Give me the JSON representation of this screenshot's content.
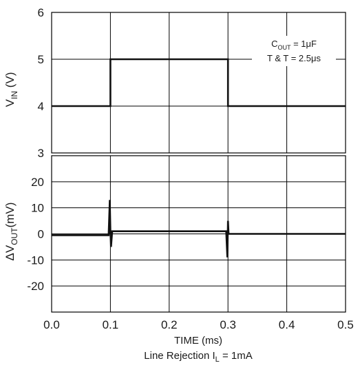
{
  "chart_data": {
    "type": "line",
    "caption": "Line Rejection",
    "caption_sub": "I",
    "caption_sub_index": "L",
    "caption_sub_tail": " = 1mA",
    "xlabel": "TIME (ms)",
    "xlim": [
      0,
      0.5
    ],
    "x_ticks": [
      0.0,
      0.1,
      0.2,
      0.3,
      0.4,
      0.5
    ],
    "x_tick_labels": [
      "0.0",
      "0.1",
      "0.2",
      "0.3",
      "0.4",
      "0.5"
    ],
    "grid": true,
    "panels": [
      {
        "id": "vin",
        "ylabel_main": "V",
        "ylabel_sub": "IN",
        "ylabel_tail": " (V)",
        "ylim": [
          3,
          6
        ],
        "y_ticks": [
          3,
          4,
          5,
          6
        ],
        "y_tick_labels": [
          "3",
          "4",
          "5",
          "6"
        ],
        "annotation": {
          "line1_main": "C",
          "line1_sub": "OUT",
          "line1_tail": " = 1μF",
          "line2": "T & T = 2.5μs"
        },
        "series": [
          {
            "x": [
              0.0,
              0.1,
              0.1,
              0.3,
              0.3,
              0.5
            ],
            "y": [
              4.0,
              4.0,
              5.0,
              5.0,
              4.0,
              4.0
            ]
          }
        ]
      },
      {
        "id": "dvout",
        "ylabel_prefix": "Δ",
        "ylabel_main": "V",
        "ylabel_sub": "OUT",
        "ylabel_tail": "(mV)",
        "ylim": [
          -30,
          30
        ],
        "y_ticks": [
          -20,
          -10,
          0,
          10,
          20
        ],
        "y_tick_labels": [
          "-20",
          "-10",
          "0",
          "10",
          "20"
        ],
        "series": [
          {
            "x": [
              0.0,
              0.097,
              0.099,
              0.1,
              0.101,
              0.103,
              0.11,
              0.297,
              0.299,
              0.3,
              0.301,
              0.303,
              0.31,
              0.5
            ],
            "y": [
              -0.5,
              -0.5,
              13,
              1,
              -5,
              1,
              1,
              1,
              -9,
              5,
              0,
              0,
              0,
              0
            ]
          }
        ]
      }
    ]
  }
}
